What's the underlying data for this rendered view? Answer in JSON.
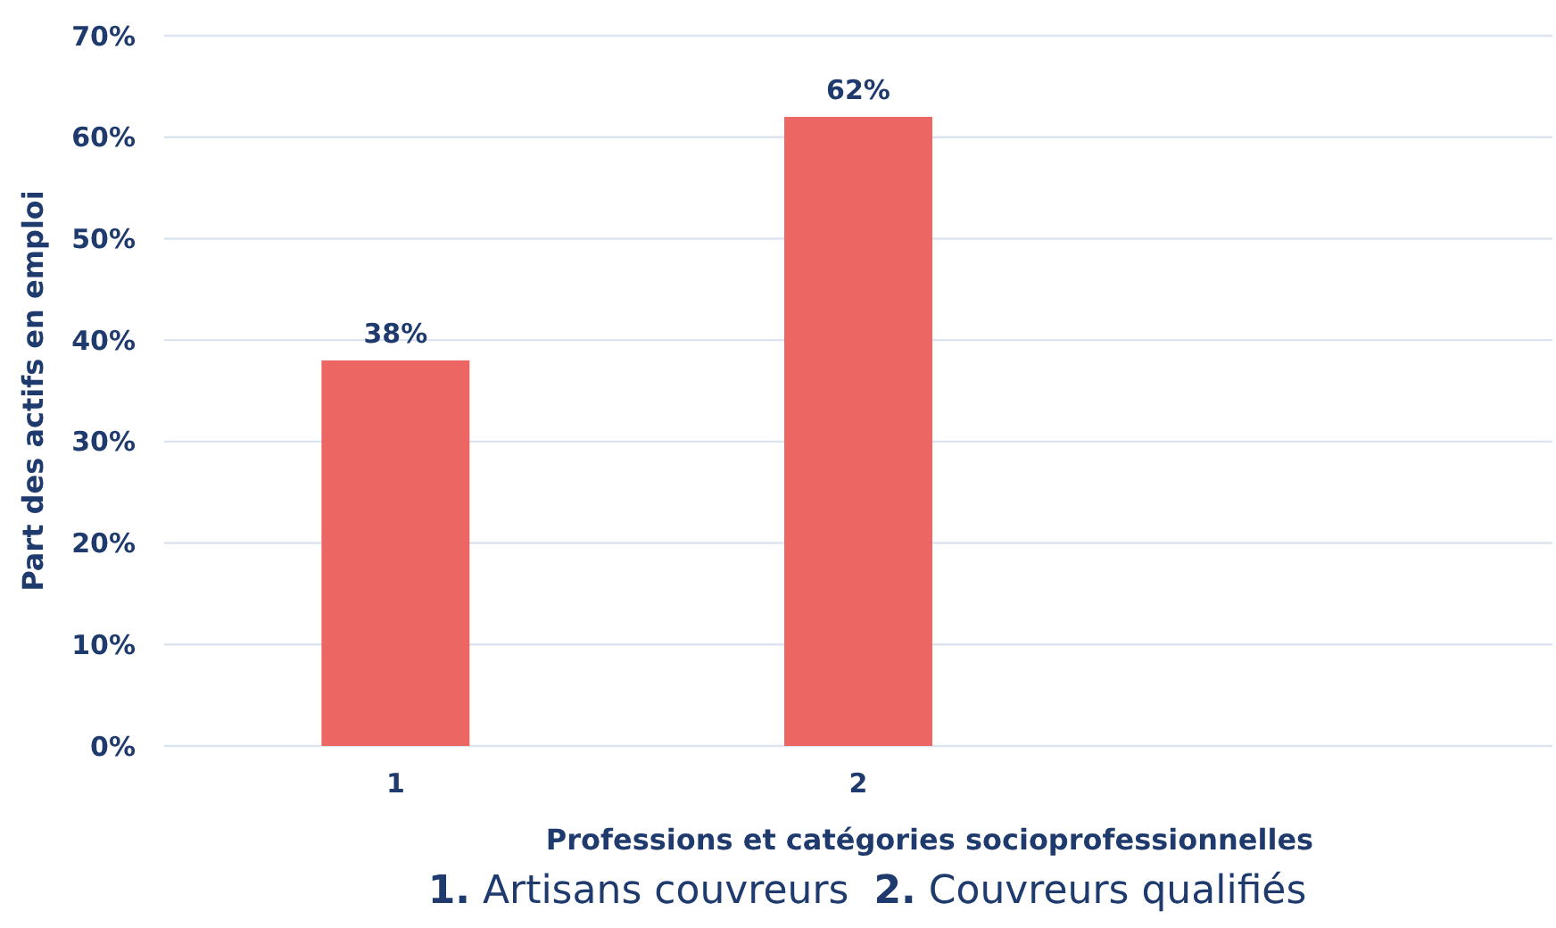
{
  "chart_data": {
    "type": "bar",
    "categories": [
      "1",
      "2",
      null
    ],
    "values": [
      38,
      62,
      null
    ],
    "color": "#ec6764",
    "value_labels": [
      "38%",
      "62%",
      null
    ],
    "xlabel": "Professions et catégories socioprofessionnelles",
    "ylabel": "Part des actifs en emploi",
    "ylim": [
      0,
      70
    ],
    "yticks": [
      {
        "value": 0,
        "label": "0%"
      },
      {
        "value": 10,
        "label": "10%"
      },
      {
        "value": 20,
        "label": "20%"
      },
      {
        "value": 30,
        "label": "30%"
      },
      {
        "value": 40,
        "label": "40%"
      },
      {
        "value": 50,
        "label": "50%"
      },
      {
        "value": 60,
        "label": "60%"
      },
      {
        "value": 70,
        "label": "70%"
      }
    ],
    "grid": "y",
    "annotations": [
      "1. Artisans couvreurs  2. Couvreurs qualifiés"
    ]
  }
}
